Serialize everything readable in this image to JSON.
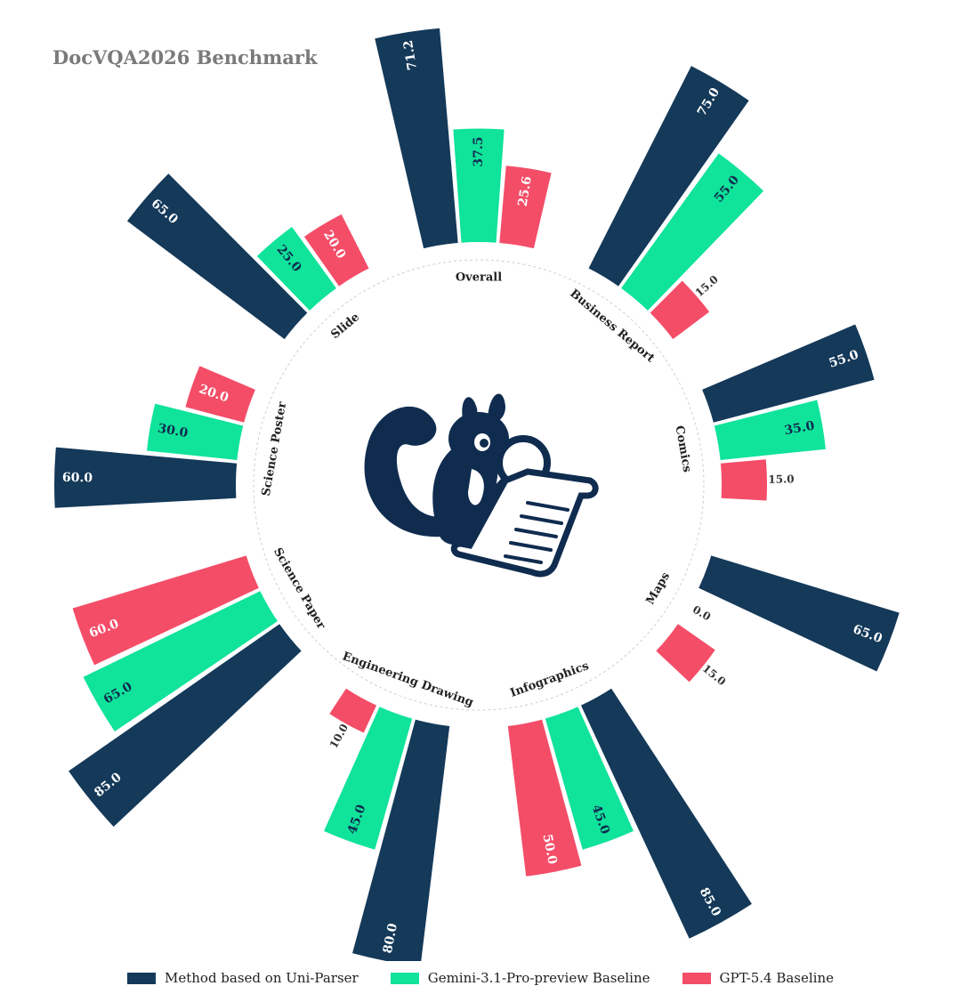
{
  "title": "DocVQA2026 Benchmark",
  "chart_data": {
    "type": "bar",
    "layout": "circular",
    "title": "DocVQA2026 Benchmark",
    "categories": [
      "Overall",
      "Business Report",
      "Comics",
      "Maps",
      "Infographics",
      "Engineering Drawing",
      "Science Paper",
      "Science Poster",
      "Slide"
    ],
    "series": [
      {
        "name": "Method based on Uni-Parser",
        "color": "#143959",
        "values": [
          71.2,
          75.0,
          55.0,
          65.0,
          85.0,
          80.0,
          85.0,
          60.0,
          65.0
        ]
      },
      {
        "name": "Gemini-3.1-Pro-preview Baseline",
        "color": "#10e39a",
        "values": [
          37.5,
          55.0,
          35.0,
          0.0,
          45.0,
          45.0,
          65.0,
          30.0,
          25.0
        ]
      },
      {
        "name": "GPT-5.4 Baseline",
        "color": "#f44d68",
        "values": [
          25.6,
          15.0,
          15.0,
          15.0,
          50.0,
          10.0,
          60.0,
          20.0,
          20.0
        ]
      }
    ],
    "value_labels": [
      [
        "71.2",
        "75.0",
        "55.0",
        "65.0",
        "85.0",
        "80.0",
        "85.0",
        "60.0",
        "65.0"
      ],
      [
        "37.5",
        "55.0",
        "35.0",
        "0.0",
        "45.0",
        "45.0",
        "65.0",
        "30.0",
        "25.0"
      ],
      [
        "25.6",
        "15.0",
        "15.0",
        "15.0",
        "50.0",
        "10.0",
        "60.0",
        "20.0",
        "20.0"
      ]
    ],
    "legend_position": "bottom",
    "grid": false
  },
  "logo": {
    "name": "squirrel-with-magnifier-logo",
    "color": "#0f2c4f"
  }
}
